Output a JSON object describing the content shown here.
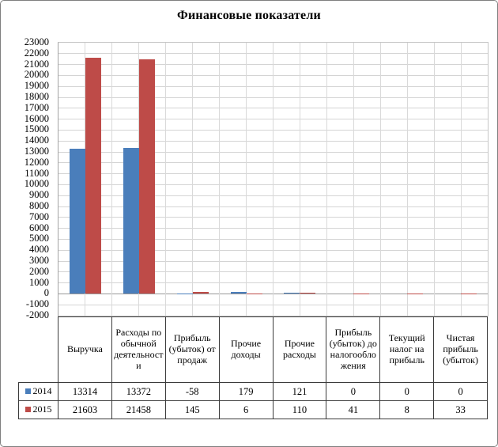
{
  "window": {
    "background": "#ffffff",
    "border_color": "#7f7f7f"
  },
  "chart_data": {
    "type": "bar",
    "title": "Финансовые показатели",
    "categories": [
      "Выручка",
      "Расходы по обычной деятельности",
      "Прибыль (убыток) от продаж",
      "Прочие доходы",
      "Прочие расходы",
      "Прибыль (убыток) до налогообложения",
      "Текущий налог на прибыль",
      "Чистая прибыль (убыток)"
    ],
    "series": [
      {
        "name": "2014",
        "color": "#4A7EBB",
        "values": [
          13314,
          13372,
          -58,
          179,
          121,
          0,
          0,
          0
        ]
      },
      {
        "name": "2015",
        "color": "#BE4B48",
        "values": [
          21603,
          21458,
          145,
          6,
          110,
          41,
          8,
          33
        ]
      }
    ],
    "y_axis": {
      "min": -2000,
      "max": 23000,
      "step": 1000
    },
    "grid": true,
    "gridline_color": "#d4d4d4",
    "zero_line_color": "#9a9a9a",
    "legend_position": "table-left-column",
    "data_table_shown": true
  }
}
